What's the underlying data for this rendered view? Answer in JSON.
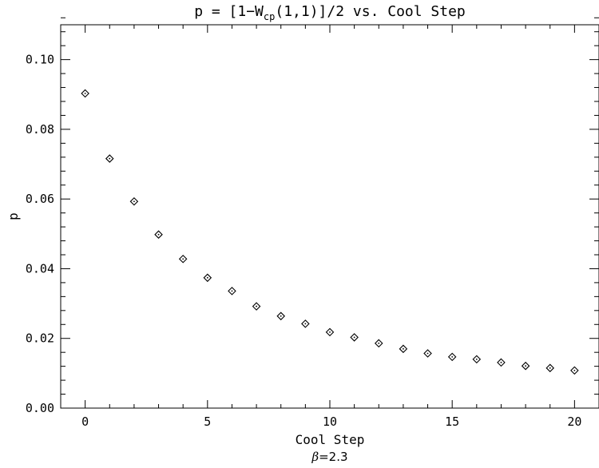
{
  "chart_data": {
    "type": "scatter",
    "title": {
      "prefix": "p = [1−W",
      "subscript": "cp",
      "suffix": "(1,1)]/2 vs. Cool Step"
    },
    "xlabel": "Cool Step",
    "ylabel": "p",
    "annotation": {
      "symbol": "β",
      "text": "=2.3"
    },
    "xlim": [
      -1,
      21
    ],
    "ylim": [
      0.0,
      0.11
    ],
    "xticks": [
      0,
      5,
      10,
      15,
      20
    ],
    "xtick_labels": [
      "0",
      "5",
      "10",
      "15",
      "20"
    ],
    "yticks": [
      0.0,
      0.02,
      0.04,
      0.06,
      0.08,
      0.1
    ],
    "ytick_labels": [
      "0.00",
      "0.02",
      "0.04",
      "0.06",
      "0.08",
      "0.10"
    ],
    "x_minor_step": 1,
    "y_minor_step": 0.004,
    "grid": false,
    "marker": "diamond",
    "series": [
      {
        "x": [
          0,
          1,
          2,
          3,
          4,
          5,
          6,
          7,
          8,
          9,
          10,
          11,
          12,
          13,
          14,
          15,
          16,
          17,
          18,
          19,
          20
        ],
        "y": [
          0.0903,
          0.0716,
          0.0593,
          0.0498,
          0.0428,
          0.0374,
          0.0336,
          0.0292,
          0.0264,
          0.0242,
          0.0218,
          0.0203,
          0.0186,
          0.017,
          0.0157,
          0.0147,
          0.014,
          0.0131,
          0.0121,
          0.0115,
          0.0108
        ]
      }
    ]
  }
}
